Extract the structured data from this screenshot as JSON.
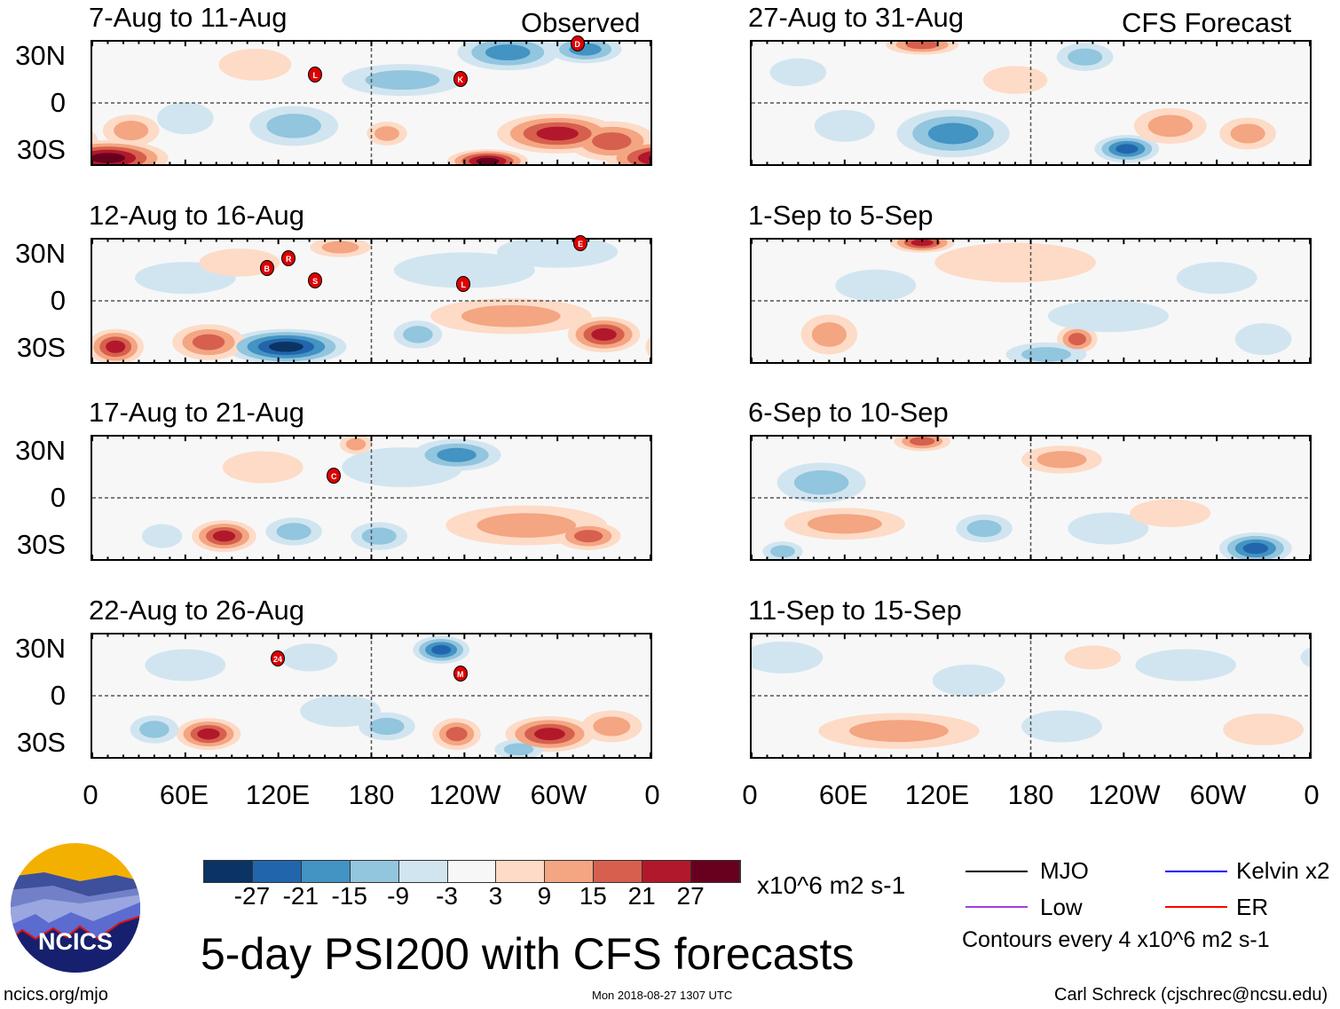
{
  "chart_data": {
    "type": "heatmap",
    "title": "5-day PSI200 with CFS forecasts",
    "units": "x10^6 m2 s-1",
    "contour_note": "Contours every 4 x10^6 m2 s-1",
    "column_labels": [
      "Observed",
      "CFS Forecast"
    ],
    "xticks": [
      "0",
      "60E",
      "120E",
      "180",
      "120W",
      "60W",
      "0"
    ],
    "yticks": [
      "30N",
      "0",
      "30S"
    ],
    "lon_range": [
      0,
      360
    ],
    "lat_range": [
      -40,
      40
    ],
    "colorbar": {
      "ticks": [
        "-27",
        "-21",
        "-15",
        "-9",
        "-3",
        "3",
        "9",
        "15",
        "21",
        "27"
      ],
      "colors": [
        "#0b3464",
        "#2166ac",
        "#4393c3",
        "#92c5de",
        "#d1e5f0",
        "#f7f7f7",
        "#fddbc7",
        "#f4a582",
        "#d6604d",
        "#b2182b",
        "#67001f"
      ]
    },
    "panels": [
      {
        "title": "7-Aug to 11-Aug",
        "column": 0,
        "row": 0,
        "anomalies": [
          [
            10,
            -36,
            32,
            30,
            9
          ],
          [
            300,
            -20,
            22,
            30,
            10
          ],
          [
            255,
            -38,
            28,
            20,
            6
          ],
          [
            268,
            33,
            -16,
            25,
            9
          ],
          [
            318,
            35,
            -20,
            18,
            7
          ],
          [
            130,
            -15,
            -10,
            22,
            10
          ],
          [
            200,
            15,
            -10,
            30,
            8
          ],
          [
            335,
            -25,
            18,
            22,
            10
          ],
          [
            25,
            -18,
            9,
            14,
            8
          ],
          [
            105,
            25,
            6,
            18,
            8
          ],
          [
            60,
            -10,
            -8,
            14,
            8
          ],
          [
            190,
            -20,
            9,
            10,
            6
          ]
        ],
        "storms": [
          {
            "label": "L",
            "lon": 144,
            "lat": 18
          },
          {
            "label": "K",
            "lon": 237,
            "lat": 15
          },
          {
            "label": "D",
            "lon": 312,
            "lat": 38
          }
        ]
      },
      {
        "title": "12-Aug to 16-Aug",
        "column": 0,
        "row": 1,
        "anomalies": [
          [
            125,
            -30,
            -32,
            30,
            9
          ],
          [
            75,
            -27,
            20,
            18,
            9
          ],
          [
            15,
            -30,
            22,
            14,
            9
          ],
          [
            330,
            -22,
            22,
            18,
            9
          ],
          [
            270,
            -10,
            12,
            40,
            9
          ],
          [
            210,
            -22,
            -10,
            12,
            7
          ],
          [
            240,
            20,
            -8,
            35,
            9
          ],
          [
            60,
            15,
            -6,
            25,
            8
          ],
          [
            95,
            25,
            6,
            20,
            7
          ],
          [
            160,
            35,
            9,
            15,
            5
          ],
          [
            300,
            32,
            -8,
            30,
            8
          ]
        ],
        "storms": [
          {
            "label": "B",
            "lon": 113,
            "lat": 21
          },
          {
            "label": "R",
            "lon": 127,
            "lat": 27
          },
          {
            "label": "S",
            "lon": 144,
            "lat": 13
          },
          {
            "label": "L",
            "lon": 239,
            "lat": 11
          },
          {
            "label": "E",
            "lon": 314,
            "lat": 37
          }
        ]
      },
      {
        "title": "17-Aug to 21-Aug",
        "column": 0,
        "row": 2,
        "anomalies": [
          [
            85,
            -25,
            22,
            16,
            8
          ],
          [
            235,
            28,
            -16,
            22,
            8
          ],
          [
            200,
            20,
            -8,
            30,
            10
          ],
          [
            130,
            -22,
            -10,
            14,
            7
          ],
          [
            185,
            -25,
            -9,
            14,
            7
          ],
          [
            280,
            -18,
            10,
            40,
            10
          ],
          [
            320,
            -25,
            15,
            16,
            7
          ],
          [
            45,
            -25,
            -8,
            10,
            6
          ],
          [
            170,
            35,
            9,
            8,
            5
          ],
          [
            110,
            20,
            5,
            20,
            8
          ]
        ],
        "storms": [
          {
            "label": "C",
            "lon": 156,
            "lat": 14
          }
        ]
      },
      {
        "title": "22-Aug to 26-Aug",
        "column": 0,
        "row": 3,
        "anomalies": [
          [
            225,
            30,
            -22,
            14,
            7
          ],
          [
            75,
            -25,
            21,
            16,
            8
          ],
          [
            295,
            -25,
            24,
            22,
            9
          ],
          [
            235,
            -25,
            16,
            12,
            8
          ],
          [
            275,
            -35,
            -12,
            12,
            5
          ],
          [
            190,
            -20,
            -9,
            14,
            7
          ],
          [
            40,
            -22,
            -12,
            12,
            7
          ],
          [
            160,
            -10,
            -7,
            20,
            8
          ],
          [
            140,
            25,
            -8,
            14,
            7
          ],
          [
            60,
            20,
            -5,
            20,
            8
          ],
          [
            335,
            -20,
            10,
            15,
            8
          ]
        ],
        "storms": [
          {
            "label": "24",
            "lon": 120,
            "lat": 24
          },
          {
            "label": "M",
            "lon": 237,
            "lat": 14
          }
        ]
      },
      {
        "title": "27-Aug to 31-Aug",
        "column": 1,
        "row": 0,
        "anomalies": [
          [
            130,
            -20,
            -20,
            28,
            12
          ],
          [
            242,
            -30,
            -22,
            16,
            7
          ],
          [
            270,
            -15,
            14,
            18,
            9
          ],
          [
            110,
            38,
            16,
            18,
            5
          ],
          [
            215,
            30,
            -10,
            14,
            7
          ],
          [
            60,
            -15,
            -7,
            15,
            8
          ],
          [
            320,
            -20,
            9,
            14,
            8
          ],
          [
            170,
            15,
            6,
            16,
            7
          ],
          [
            30,
            20,
            -6,
            14,
            7
          ]
        ],
        "storms": []
      },
      {
        "title": "1-Sep to 5-Sep",
        "column": 1,
        "row": 1,
        "anomalies": [
          [
            110,
            38,
            22,
            16,
            5
          ],
          [
            210,
            -25,
            18,
            10,
            7
          ],
          [
            190,
            -35,
            -12,
            20,
            6
          ],
          [
            50,
            -22,
            10,
            14,
            10
          ],
          [
            170,
            25,
            6,
            40,
            10
          ],
          [
            230,
            -10,
            -7,
            30,
            8
          ],
          [
            300,
            15,
            -7,
            20,
            8
          ],
          [
            80,
            10,
            -5,
            20,
            8
          ],
          [
            330,
            -25,
            -8,
            14,
            8
          ]
        ],
        "storms": []
      },
      {
        "title": "6-Sep to 10-Sep",
        "column": 1,
        "row": 2,
        "anomalies": [
          [
            325,
            -33,
            -24,
            18,
            8
          ],
          [
            110,
            37,
            18,
            14,
            5
          ],
          [
            60,
            -17,
            12,
            30,
            8
          ],
          [
            200,
            25,
            9,
            20,
            7
          ],
          [
            45,
            10,
            -10,
            22,
            10
          ],
          [
            150,
            -20,
            -9,
            14,
            7
          ],
          [
            230,
            -20,
            -7,
            20,
            8
          ],
          [
            270,
            -10,
            7,
            20,
            7
          ],
          [
            20,
            -35,
            -12,
            10,
            5
          ]
        ],
        "storms": []
      },
      {
        "title": "11-Sep to 15-Sep",
        "column": 1,
        "row": 3,
        "anomalies": [
          [
            95,
            -23,
            14,
            40,
            9
          ],
          [
            20,
            25,
            -8,
            20,
            8
          ],
          [
            220,
            25,
            7,
            14,
            6
          ],
          [
            200,
            -20,
            -6,
            20,
            8
          ],
          [
            330,
            -22,
            7,
            20,
            8
          ],
          [
            280,
            20,
            -5,
            25,
            8
          ],
          [
            140,
            10,
            -5,
            18,
            8
          ]
        ],
        "storms": []
      }
    ]
  },
  "legend": {
    "items": [
      {
        "label": "MJO",
        "color": "#000000"
      },
      {
        "label": "Kelvin x2",
        "color": "#0000ff"
      },
      {
        "label": "Low",
        "color": "#a040e0"
      },
      {
        "label": "ER",
        "color": "#ff0000"
      }
    ],
    "contours": "Contours every 4 x10^6 m2 s-1"
  },
  "logo": {
    "text": "NCICS"
  },
  "footer": {
    "url": "ncics.org/mjo",
    "date": "Mon 2018-08-27 1307 UTC",
    "author": "Carl Schreck (cjschrec@ncsu.edu)"
  }
}
